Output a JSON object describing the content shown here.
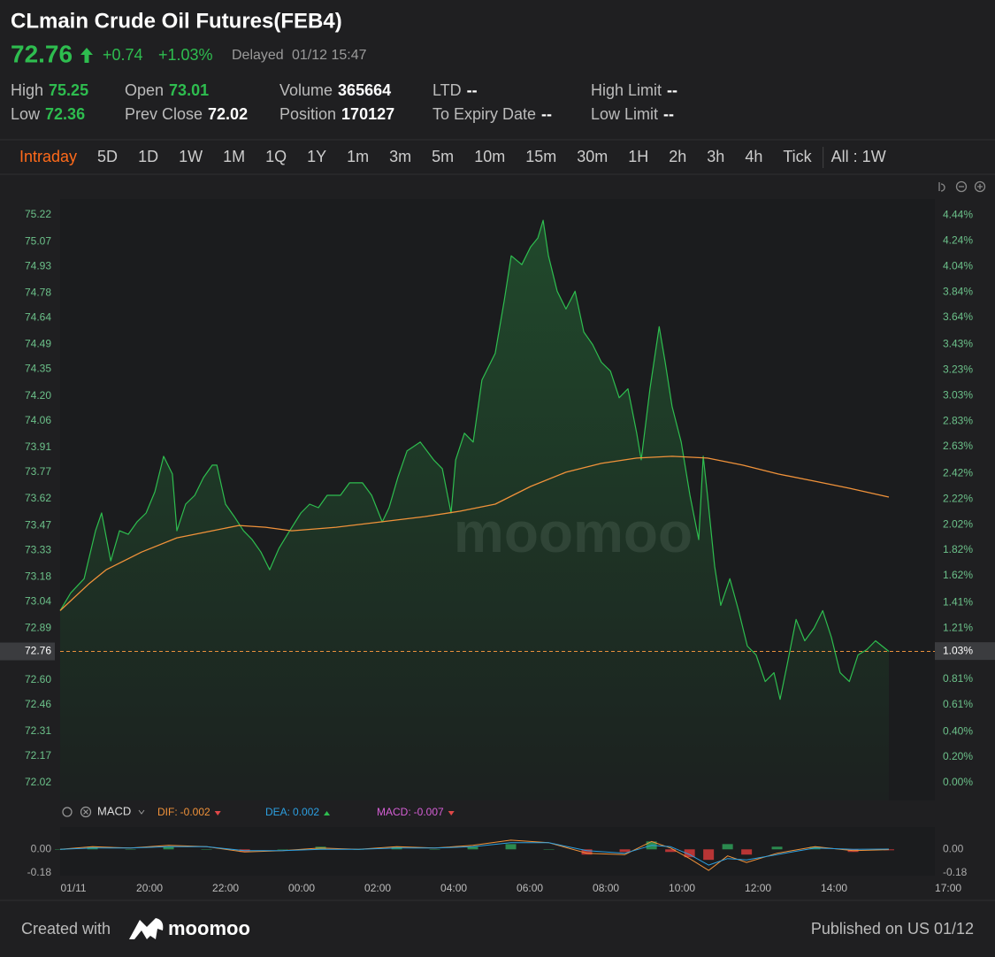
{
  "header": {
    "title": "CLmain Crude Oil Futures(FEB4)",
    "price": 72.76,
    "change": "+0.74",
    "change_pct": "+1.03%",
    "status": "Delayed",
    "time": "01/12 15:47"
  },
  "stats": [
    {
      "label": "High",
      "value": 75.25,
      "color": "#2ebd4f"
    },
    {
      "label": "Open",
      "value": 73.01,
      "color": "#2ebd4f"
    },
    {
      "label": "Volume",
      "value": 365664,
      "color": "#ffffff"
    },
    {
      "label": "LTD",
      "value": "--",
      "color": "#ffffff"
    },
    {
      "label": "High Limit",
      "value": "--",
      "color": "#ffffff"
    },
    {
      "label": "Low",
      "value": 72.36,
      "color": "#2ebd4f"
    },
    {
      "label": "Prev Close",
      "value": 72.02,
      "color": "#ffffff"
    },
    {
      "label": "Position",
      "value": 170127,
      "color": "#ffffff"
    },
    {
      "label": "To Expiry Date",
      "value": "--",
      "color": "#ffffff"
    },
    {
      "label": "Low Limit",
      "value": "--",
      "color": "#ffffff"
    }
  ],
  "tabs": [
    "Intraday",
    "5D",
    "1D",
    "1W",
    "1M",
    "1Q",
    "1Y",
    "1m",
    "3m",
    "5m",
    "10m",
    "15m",
    "30m",
    "1H",
    "2h",
    "3h",
    "4h",
    "Tick"
  ],
  "active_tab": 0,
  "range_label": "All : 1W",
  "watermark": "moomoo",
  "chart_data": [
    {
      "type": "line",
      "xlim": [
        -0.35,
        22.65
      ],
      "xticks": [
        {
          "value": 0,
          "label": "01/11"
        },
        {
          "value": 2,
          "label": "20:00"
        },
        {
          "value": 4,
          "label": "22:00"
        },
        {
          "value": 6,
          "label": "00:00"
        },
        {
          "value": 8,
          "label": "02:00"
        },
        {
          "value": 10,
          "label": "04:00"
        },
        {
          "value": 12,
          "label": "06:00"
        },
        {
          "value": 14,
          "label": "08:00"
        },
        {
          "value": 16,
          "label": "10:00"
        },
        {
          "value": 18,
          "label": "12:00"
        },
        {
          "value": 20,
          "label": "14:00"
        },
        {
          "value": 23,
          "label": "17:00"
        }
      ],
      "ylim": [
        71.92,
        75.31
      ],
      "yticks": [
        75.22,
        75.07,
        74.93,
        74.78,
        74.64,
        74.49,
        74.35,
        {
          "value": 74.2,
          "label": "74.20"
        },
        74.06,
        73.91,
        73.77,
        73.62,
        73.47,
        73.33,
        73.18,
        73.04,
        72.89,
        {
          "value": 72.6,
          "label": "72.60"
        },
        72.46,
        72.31,
        72.17,
        72.02
      ],
      "y2lim": [
        -0.139,
        4.568
      ],
      "y2ticks": [
        {
          "value": 4.44,
          "label": "4.44%"
        },
        {
          "value": 4.24,
          "label": "4.24%"
        },
        {
          "value": 4.04,
          "label": "4.04%"
        },
        {
          "value": 3.84,
          "label": "3.84%"
        },
        {
          "value": 3.64,
          "label": "3.64%"
        },
        {
          "value": 3.43,
          "label": "3.43%"
        },
        {
          "value": 3.23,
          "label": "3.23%"
        },
        {
          "value": 3.03,
          "label": "3.03%"
        },
        {
          "value": 2.83,
          "label": "2.83%"
        },
        {
          "value": 2.63,
          "label": "2.63%"
        },
        {
          "value": 2.42,
          "label": "2.42%"
        },
        {
          "value": 2.22,
          "label": "2.22%"
        },
        {
          "value": 2.02,
          "label": "2.02%"
        },
        {
          "value": 1.82,
          "label": "1.82%"
        },
        {
          "value": 1.62,
          "label": "1.62%"
        },
        {
          "value": 1.41,
          "label": "1.41%"
        },
        {
          "value": 1.21,
          "label": "1.21%"
        },
        {
          "value": 0.81,
          "label": "0.81%"
        },
        {
          "value": 0.61,
          "label": "0.61%"
        },
        {
          "value": 0.4,
          "label": "0.40%"
        },
        {
          "value": 0.2,
          "label": "0.20%"
        },
        {
          "value": 0,
          "label": "0.00%"
        }
      ],
      "last_price": 72.76,
      "last_pct": {
        "value": 1.03,
        "label": "1.03%"
      },
      "area": true,
      "series": [
        {
          "color": "#2ebd4f",
          "x": [
            -0.35,
            -0.07,
            0.28,
            0.58,
            0.74,
            0.98,
            1.21,
            1.44,
            1.67,
            1.91,
            2.14,
            2.37,
            2.6,
            2.72,
            2.95,
            3.19,
            3.42,
            3.65,
            3.77,
            4.0,
            4.23,
            4.47,
            4.7,
            4.93,
            5.16,
            5.4,
            5.63,
            5.98,
            6.21,
            6.44,
            6.67,
            7.02,
            7.26,
            7.6,
            7.84,
            8.12,
            8.3,
            8.53,
            8.77,
            9.12,
            9.47,
            9.7,
            9.93,
            10.05,
            10.28,
            10.51,
            10.74,
            11.09,
            11.33,
            11.51,
            11.79,
            12.02,
            12.21,
            12.35,
            12.49,
            12.72,
            12.95,
            13.19,
            13.42,
            13.65,
            13.88,
            14.12,
            14.35,
            14.58,
            14.81,
            14.93,
            15.16,
            15.4,
            15.56,
            15.74,
            15.98,
            16.21,
            16.44,
            16.56,
            16.67,
            16.86,
            17.02,
            17.26,
            17.49,
            17.72,
            17.95,
            18.19,
            18.42,
            18.58,
            18.77,
            19.0,
            19.23,
            19.47,
            19.7,
            19.93,
            20.16,
            20.4,
            20.63,
            20.86,
            21.09,
            21.44
          ],
          "values": [
            72.99,
            73.09,
            73.17,
            73.44,
            73.54,
            73.27,
            73.44,
            73.42,
            73.49,
            73.54,
            73.66,
            73.86,
            73.76,
            73.44,
            73.59,
            73.64,
            73.74,
            73.81,
            73.81,
            73.59,
            73.52,
            73.44,
            73.39,
            73.32,
            73.22,
            73.34,
            73.42,
            73.54,
            73.59,
            73.57,
            73.64,
            73.64,
            73.71,
            73.71,
            73.64,
            73.49,
            73.57,
            73.74,
            73.89,
            73.94,
            73.84,
            73.79,
            73.54,
            73.84,
            73.99,
            73.94,
            74.29,
            74.44,
            74.74,
            74.99,
            74.94,
            75.04,
            75.09,
            75.19,
            74.99,
            74.79,
            74.69,
            74.79,
            74.56,
            74.49,
            74.39,
            74.34,
            74.19,
            74.24,
            73.99,
            73.84,
            74.24,
            74.59,
            74.39,
            74.14,
            73.94,
            73.64,
            73.39,
            73.86,
            73.64,
            73.24,
            73.02,
            73.17,
            72.99,
            72.79,
            72.74,
            72.59,
            72.64,
            72.49,
            72.69,
            72.94,
            72.82,
            72.89,
            72.99,
            72.84,
            72.64,
            72.59,
            72.74,
            72.77,
            72.82,
            72.76
          ]
        },
        {
          "color": "#f0923a",
          "x": [
            -0.35,
            0.4,
            0.86,
            1.79,
            2.72,
            3.65,
            4.35,
            5.05,
            5.74,
            6.91,
            8.07,
            9.23,
            10.16,
            11.09,
            12.02,
            12.95,
            13.88,
            14.81,
            15.74,
            16.67,
            17.6,
            18.53,
            19.47,
            20.4,
            21.44
          ],
          "values": [
            72.99,
            73.14,
            73.22,
            73.32,
            73.4,
            73.44,
            73.47,
            73.46,
            73.44,
            73.46,
            73.49,
            73.52,
            73.55,
            73.59,
            73.69,
            73.77,
            73.82,
            73.85,
            73.86,
            73.85,
            73.81,
            73.76,
            73.72,
            73.68,
            73.63
          ]
        }
      ]
    },
    {
      "type": "line",
      "title": "MACD",
      "ylim": [
        -0.2,
        0.17
      ],
      "yticks": [
        {
          "value": 0,
          "label": "0.00"
        },
        {
          "value": -0.18,
          "label": "-0.18"
        }
      ],
      "series": [
        {
          "name": "DIF:",
          "current": -0.002,
          "color": "#f0923a",
          "kind": "line",
          "x": [
            -0.35,
            0.5,
            1.5,
            2.5,
            3.5,
            4.5,
            5.5,
            6.5,
            7.5,
            8.5,
            9.5,
            10.5,
            11.5,
            12.5,
            13.5,
            14.5,
            15.2,
            15.7,
            16.2,
            16.7,
            17.2,
            17.7,
            18.5,
            19.5,
            20.5,
            21.44
          ],
          "values": [
            0,
            0.02,
            0.01,
            0.03,
            0.02,
            -0.02,
            -0.01,
            0.01,
            0,
            0.02,
            0.01,
            0.03,
            0.07,
            0.05,
            -0.03,
            -0.04,
            0.06,
            0.01,
            -0.07,
            -0.16,
            -0.05,
            -0.1,
            -0.03,
            0.02,
            -0.01,
            -0.002
          ]
        },
        {
          "name": "DEA:",
          "current": 0.002,
          "color": "#2c9fe0",
          "kind": "line",
          "x": [
            -0.35,
            0.5,
            1.5,
            2.5,
            3.5,
            4.5,
            5.5,
            6.5,
            7.5,
            8.5,
            9.5,
            10.5,
            11.5,
            12.5,
            13.5,
            14.5,
            15.2,
            15.7,
            16.2,
            16.7,
            17.2,
            17.7,
            18.5,
            19.5,
            20.5,
            21.44
          ],
          "values": [
            0,
            0.01,
            0.01,
            0.02,
            0.02,
            -0.01,
            -0.01,
            0,
            0,
            0.01,
            0.01,
            0.02,
            0.05,
            0.05,
            -0.01,
            -0.03,
            0.03,
            0.02,
            -0.04,
            -0.12,
            -0.07,
            -0.08,
            -0.04,
            0.01,
            0,
            0.002
          ]
        },
        {
          "name": "MACD:",
          "current": -0.007,
          "color": "#d65fd6",
          "kind": "bar",
          "up_color": "#2e9e58",
          "down_color": "#d43a3a",
          "x": [
            -0.35,
            0.5,
            1.5,
            2.5,
            3.5,
            4.5,
            5.5,
            6.5,
            7.5,
            8.5,
            9.5,
            10.5,
            11.5,
            12.5,
            13.5,
            14.5,
            15.2,
            15.7,
            16.2,
            16.7,
            17.2,
            17.7,
            18.5,
            19.5,
            20.5,
            21.44
          ],
          "values": [
            0,
            0.02,
            0,
            0.02,
            0,
            -0.02,
            0,
            0.02,
            0,
            0.02,
            0,
            0.02,
            0.04,
            0,
            -0.04,
            -0.02,
            0.06,
            -0.02,
            -0.06,
            -0.08,
            0.04,
            -0.04,
            0.02,
            0.02,
            -0.02,
            -0.007
          ]
        }
      ]
    }
  ],
  "footer": {
    "created": "Created with",
    "brand": "moomoo",
    "published": "Published on US 01/12"
  }
}
